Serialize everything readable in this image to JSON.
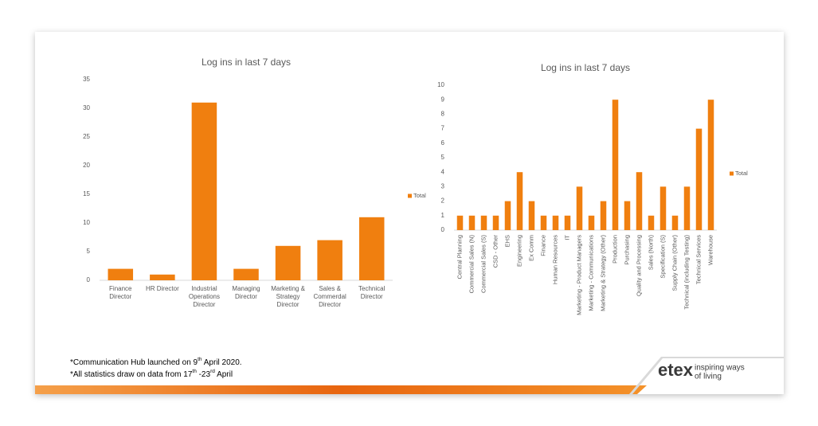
{
  "chart_data": [
    {
      "type": "bar",
      "title": "Log ins in last 7 days",
      "categories": [
        "Finance Director",
        "HR Director",
        "Industrial Operations Director",
        "Managing Director",
        "Marketing & Strategy Director",
        "Sales & Commerdal Director",
        "Technical Director"
      ],
      "series": [
        {
          "name": "Total",
          "color": "#f07f0f",
          "values": [
            2,
            1,
            31,
            2,
            6,
            7,
            11
          ]
        }
      ],
      "ylim": [
        0,
        35
      ],
      "yticks": [
        0,
        5,
        10,
        15,
        20,
        25,
        30,
        35
      ],
      "grid": false,
      "legend": "right",
      "label_orientation": "horizontal"
    },
    {
      "type": "bar",
      "title": "Log ins in last 7 days",
      "categories": [
        "Central Planning",
        "Commercial Sales (N)",
        "Commercial Sales (S)",
        "CSD - Other",
        "EHS",
        "Engineering",
        "Ex Comm",
        "Finance",
        "Human Resources",
        "IT",
        "Marketing - Product Managers",
        "Marketing - Communications",
        "Marketing & Strategy (Other)",
        "Production",
        "Purchasing",
        "Quality and Processing",
        "Sales (North)",
        "Specification (S)",
        "Supply Chain (Other)",
        "Technical (including Testing)",
        "Technical Services",
        "Warehouse"
      ],
      "series": [
        {
          "name": "Total",
          "color": "#f07f0f",
          "values": [
            1,
            1,
            1,
            1,
            2,
            4,
            2,
            1,
            1,
            1,
            3,
            1,
            2,
            9,
            2,
            4,
            1,
            3,
            1,
            3,
            7,
            9
          ]
        }
      ],
      "ylim": [
        0,
        10
      ],
      "yticks": [
        0,
        1,
        2,
        3,
        4,
        5,
        6,
        7,
        8,
        9,
        10
      ],
      "grid": false,
      "legend": "right",
      "label_orientation": "vertical"
    }
  ],
  "footnotes": [
    [
      "*Communication Hub launched on 9",
      "th",
      " April 2020."
    ],
    [
      "*All statistics draw on data from 17",
      "th",
      " -23",
      "rd",
      " April"
    ]
  ],
  "logo": {
    "name": "etex",
    "tagline": [
      "inspiring ways",
      "of living"
    ]
  }
}
